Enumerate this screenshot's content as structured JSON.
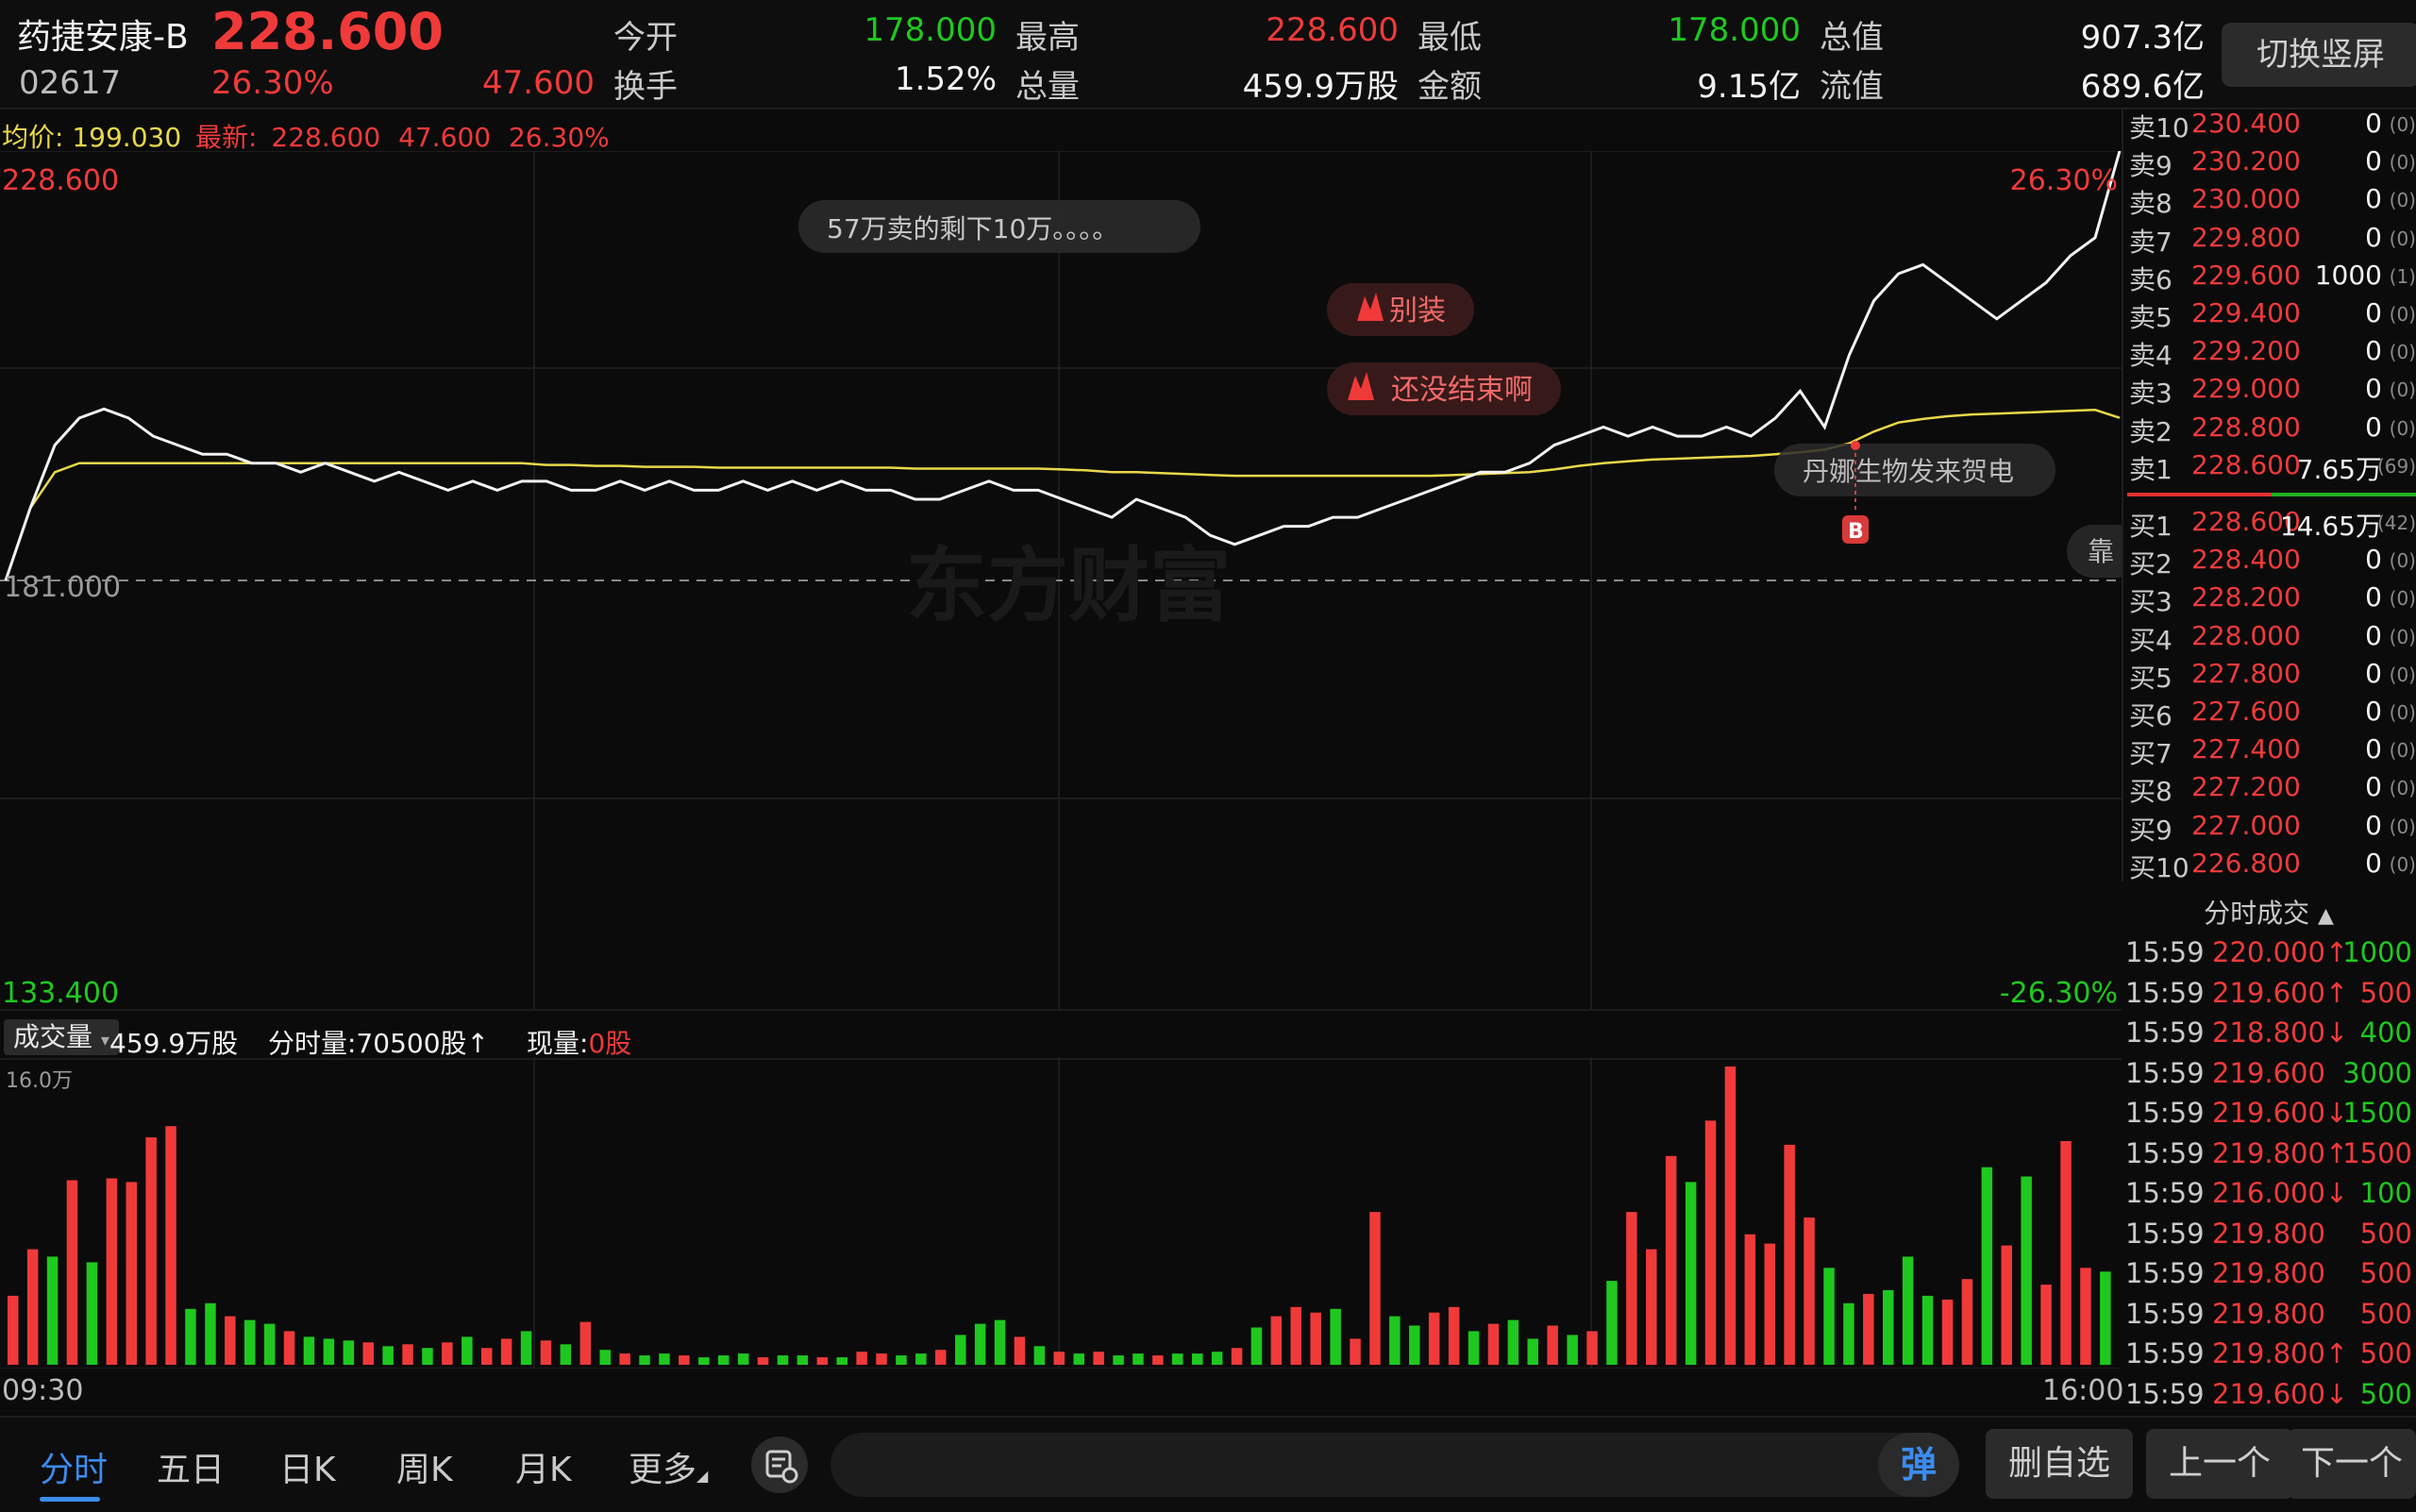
{
  "header": {
    "stock_name": "药捷安康-B",
    "price": "228.600",
    "code": "02617",
    "change_pct": "26.30%",
    "change_amt": "47.600",
    "open_label": "今开",
    "open_value": "178.000",
    "high_label": "最高",
    "high_value": "228.600",
    "low_label": "最低",
    "low_value": "178.000",
    "total_value_label": "总值",
    "total_value": "907.3亿",
    "turnover_label": "换手",
    "turnover_value": "1.52%",
    "volume_label": "总量",
    "volume_value": "459.9万股",
    "amount_label": "金额",
    "amount_value": "9.15亿",
    "float_value_label": "流值",
    "float_value": "689.6亿",
    "switch_button": "切换竖屏"
  },
  "avg_info": {
    "avg_label": "均价:",
    "avg_value": "199.030",
    "latest_label": "最新:",
    "latest_price": "228.600",
    "latest_change": "47.600",
    "latest_pct": "26.30%"
  },
  "chart_data": [
    {
      "type": "line",
      "name": "intraday",
      "x_start_label": "09:30",
      "x_end_label": "16:00",
      "y_max_label": "228.600",
      "y_min_label": "133.400",
      "y_max_pct": "26.30%",
      "y_min_pct": "-26.30%",
      "prev_close": "181.000",
      "ylim": [
        133.4,
        228.6
      ],
      "prev_close_value": 181.0,
      "price_series": [
        181,
        189,
        196,
        199,
        200,
        199,
        197,
        196,
        195,
        195,
        194,
        194,
        193,
        194,
        193,
        192,
        193,
        192,
        191,
        192,
        191,
        192,
        192,
        191,
        191,
        192,
        191,
        192,
        191,
        191,
        192,
        191,
        192,
        191,
        192,
        191,
        191,
        190,
        190,
        191,
        192,
        191,
        191,
        190,
        189,
        188,
        190,
        189,
        188,
        186,
        185,
        186,
        187,
        187,
        188,
        188,
        189,
        190,
        191,
        192,
        193,
        193,
        194,
        196,
        197,
        198,
        197,
        198,
        197,
        197,
        198,
        197,
        199,
        202,
        198,
        206,
        212,
        215,
        216,
        214,
        212,
        210,
        212,
        214,
        217,
        219,
        228.6
      ],
      "avg_series": [
        181,
        189,
        193,
        194,
        194,
        194,
        194,
        194,
        194,
        194,
        194,
        194,
        194,
        194,
        194,
        194,
        194,
        194,
        194,
        194,
        194,
        194,
        193.8,
        193.8,
        193.7,
        193.7,
        193.6,
        193.6,
        193.6,
        193.5,
        193.5,
        193.5,
        193.5,
        193.5,
        193.5,
        193.5,
        193.5,
        193.4,
        193.4,
        193.4,
        193.4,
        193.4,
        193.4,
        193.3,
        193.2,
        193.0,
        193.0,
        192.9,
        192.8,
        192.7,
        192.6,
        192.6,
        192.6,
        192.6,
        192.6,
        192.6,
        192.6,
        192.6,
        192.6,
        192.7,
        192.8,
        192.9,
        193.0,
        193.3,
        193.7,
        194.0,
        194.2,
        194.4,
        194.5,
        194.6,
        194.7,
        194.8,
        195.0,
        195.2,
        195.5,
        196.2,
        197.5,
        198.5,
        198.9,
        199.2,
        199.4,
        199.5,
        199.6,
        199.7,
        199.8,
        199.9,
        199.03
      ],
      "annotations": [
        "57万卖的剩下10万。。。。",
        "别装",
        "还没结束啊",
        "丹娜生物发来贺电",
        "靠"
      ],
      "marker_label": "B",
      "watermark": "东方财富"
    },
    {
      "type": "bar",
      "name": "volume",
      "head_label": "成交量",
      "total_volume": "459.9万股",
      "interval_label": "分时量:70500股↑",
      "current_label": "现量:",
      "current_value": "0股",
      "y_max_label": "16.0万",
      "ylim": [
        0,
        160000
      ],
      "values": [
        37000,
        62000,
        58000,
        99000,
        55000,
        100000,
        98000,
        122000,
        128000,
        30000,
        33000,
        26000,
        24000,
        22000,
        18000,
        15000,
        14000,
        13000,
        12000,
        10000,
        11000,
        9000,
        12000,
        15000,
        9000,
        14000,
        18000,
        13000,
        11000,
        23000,
        8000,
        6000,
        5000,
        6000,
        5000,
        4000,
        5000,
        6000,
        4000,
        5000,
        5000,
        4000,
        4000,
        7000,
        6000,
        5000,
        6000,
        8000,
        16000,
        22000,
        24000,
        15000,
        10000,
        7000,
        6000,
        7000,
        5000,
        6000,
        5000,
        6000,
        6000,
        7000,
        9000,
        20000,
        26000,
        31000,
        28000,
        30000,
        14000,
        82000,
        26000,
        21000,
        28000,
        31000,
        18000,
        22000,
        24000,
        14000,
        21000,
        16000,
        18000,
        45000,
        82000,
        62000,
        112000,
        98000,
        131000,
        160000,
        70000,
        65000,
        118000,
        79000,
        52000,
        33000,
        38000,
        40000,
        58000,
        37000,
        35000,
        46000,
        106000,
        64000,
        101000,
        43000,
        120000,
        52000,
        50000
      ],
      "colors": [
        "r",
        "r",
        "g",
        "r",
        "g",
        "r",
        "r",
        "r",
        "r",
        "g",
        "g",
        "r",
        "g",
        "g",
        "r",
        "g",
        "g",
        "g",
        "r",
        "g",
        "r",
        "g",
        "r",
        "g",
        "r",
        "r",
        "g",
        "r",
        "g",
        "r",
        "g",
        "r",
        "g",
        "g",
        "r",
        "g",
        "g",
        "g",
        "r",
        "g",
        "g",
        "r",
        "g",
        "r",
        "r",
        "g",
        "g",
        "r",
        "g",
        "g",
        "g",
        "r",
        "g",
        "r",
        "g",
        "r",
        "g",
        "g",
        "r",
        "g",
        "g",
        "g",
        "r",
        "g",
        "r",
        "r",
        "r",
        "g",
        "r",
        "r",
        "g",
        "g",
        "r",
        "r",
        "g",
        "r",
        "g",
        "g",
        "r",
        "g",
        "r",
        "g",
        "r",
        "r",
        "r",
        "g",
        "r",
        "r",
        "r",
        "r",
        "r",
        "r",
        "g",
        "g",
        "r",
        "g",
        "g",
        "g",
        "r",
        "r",
        "g",
        "r",
        "g",
        "r",
        "r",
        "r",
        "g"
      ]
    }
  ],
  "order_book": {
    "asks": [
      {
        "label": "卖10",
        "price": "230.400",
        "qty": "0",
        "count": "(0)"
      },
      {
        "label": "卖9",
        "price": "230.200",
        "qty": "0",
        "count": "(0)"
      },
      {
        "label": "卖8",
        "price": "230.000",
        "qty": "0",
        "count": "(0)"
      },
      {
        "label": "卖7",
        "price": "229.800",
        "qty": "0",
        "count": "(0)"
      },
      {
        "label": "卖6",
        "price": "229.600",
        "qty": "1000",
        "count": "(1)"
      },
      {
        "label": "卖5",
        "price": "229.400",
        "qty": "0",
        "count": "(0)"
      },
      {
        "label": "卖4",
        "price": "229.200",
        "qty": "0",
        "count": "(0)"
      },
      {
        "label": "卖3",
        "price": "229.000",
        "qty": "0",
        "count": "(0)"
      },
      {
        "label": "卖2",
        "price": "228.800",
        "qty": "0",
        "count": "(0)"
      },
      {
        "label": "卖1",
        "price": "228.600",
        "qty": "7.65万",
        "count": "(69)"
      }
    ],
    "bids": [
      {
        "label": "买1",
        "price": "228.600",
        "qty": "14.65万",
        "count": "(42)"
      },
      {
        "label": "买2",
        "price": "228.400",
        "qty": "0",
        "count": "(0)"
      },
      {
        "label": "买3",
        "price": "228.200",
        "qty": "0",
        "count": "(0)"
      },
      {
        "label": "买4",
        "price": "228.000",
        "qty": "0",
        "count": "(0)"
      },
      {
        "label": "买5",
        "price": "227.800",
        "qty": "0",
        "count": "(0)"
      },
      {
        "label": "买6",
        "price": "227.600",
        "qty": "0",
        "count": "(0)"
      },
      {
        "label": "买7",
        "price": "227.400",
        "qty": "0",
        "count": "(0)"
      },
      {
        "label": "买8",
        "price": "227.200",
        "qty": "0",
        "count": "(0)"
      },
      {
        "label": "买9",
        "price": "227.000",
        "qty": "0",
        "count": "(0)"
      },
      {
        "label": "买10",
        "price": "226.800",
        "qty": "0",
        "count": "(0)"
      }
    ]
  },
  "ticks": {
    "title": "分时成交",
    "rows": [
      {
        "time": "15:59",
        "price": "220.000↑",
        "price_color": "red",
        "vol": "1000",
        "vol_color": "green"
      },
      {
        "time": "15:59",
        "price": "219.600↑",
        "price_color": "red",
        "vol": "500",
        "vol_color": "red"
      },
      {
        "time": "15:59",
        "price": "218.800↓",
        "price_color": "red",
        "vol": "400",
        "vol_color": "green"
      },
      {
        "time": "15:59",
        "price": "219.600",
        "price_color": "red",
        "vol": "3000",
        "vol_color": "green"
      },
      {
        "time": "15:59",
        "price": "219.600↓",
        "price_color": "red",
        "vol": "1500",
        "vol_color": "green"
      },
      {
        "time": "15:59",
        "price": "219.800↑",
        "price_color": "red",
        "vol": "1500",
        "vol_color": "red"
      },
      {
        "time": "15:59",
        "price": "216.000↓",
        "price_color": "red",
        "vol": "100",
        "vol_color": "green"
      },
      {
        "time": "15:59",
        "price": "219.800",
        "price_color": "red",
        "vol": "500",
        "vol_color": "red"
      },
      {
        "time": "15:59",
        "price": "219.800",
        "price_color": "red",
        "vol": "500",
        "vol_color": "red"
      },
      {
        "time": "15:59",
        "price": "219.800",
        "price_color": "red",
        "vol": "500",
        "vol_color": "red"
      },
      {
        "time": "15:59",
        "price": "219.800↑",
        "price_color": "red",
        "vol": "500",
        "vol_color": "red"
      },
      {
        "time": "15:59",
        "price": "219.600↓",
        "price_color": "red",
        "vol": "500",
        "vol_color": "green"
      }
    ]
  },
  "toolbar": {
    "tabs": [
      "分时",
      "五日",
      "日K",
      "周K",
      "月K",
      "更多"
    ],
    "danmu_icon_label": "弹",
    "remove_fav": "删自选",
    "prev": "上一个",
    "next": "下一个"
  },
  "colors": {
    "up": "#f03a3a",
    "down": "#1fc81f",
    "avg_line": "#e8d84a",
    "price_line": "#f2f2f2",
    "accent": "#3b8cf0"
  }
}
